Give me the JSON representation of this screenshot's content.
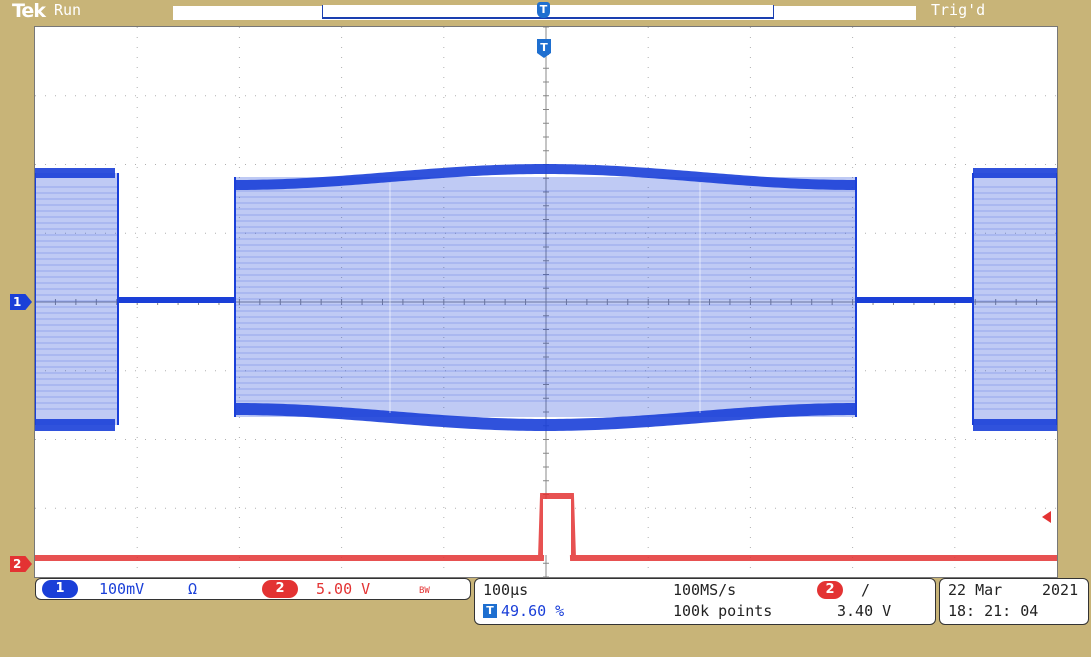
{
  "header": {
    "logo": "Tek",
    "acquisition_state": "Run",
    "trigger_state": "Trig'd",
    "record_trigger_icon": "T"
  },
  "screen": {
    "trigger_position_icon": "T",
    "ch1_marker": "1",
    "ch2_marker": "2"
  },
  "vertical": {
    "ch1_badge": "1",
    "ch1_scale": "100mV",
    "ch1_coupling": "Ω",
    "ch2_badge": "2",
    "ch2_scale": "5.00 V",
    "bandwidth_limit": "BW"
  },
  "horizontal": {
    "time_per_div": "100μs",
    "trigger_position_icon": "T",
    "trigger_position": "49.60 %",
    "sample_rate": "100MS/s",
    "record_length": "100k points",
    "trigger_source_badge": "2",
    "trigger_slope": "/",
    "trigger_level": "3.40 V"
  },
  "datetime": {
    "date": "22 Mar",
    "year": "2021",
    "time": "18: 21: 04"
  },
  "colors": {
    "ch1": "#1a3fd8",
    "ch2": "#e33333",
    "bezel": "#c8b478",
    "accent": "#1e6fd0"
  }
}
